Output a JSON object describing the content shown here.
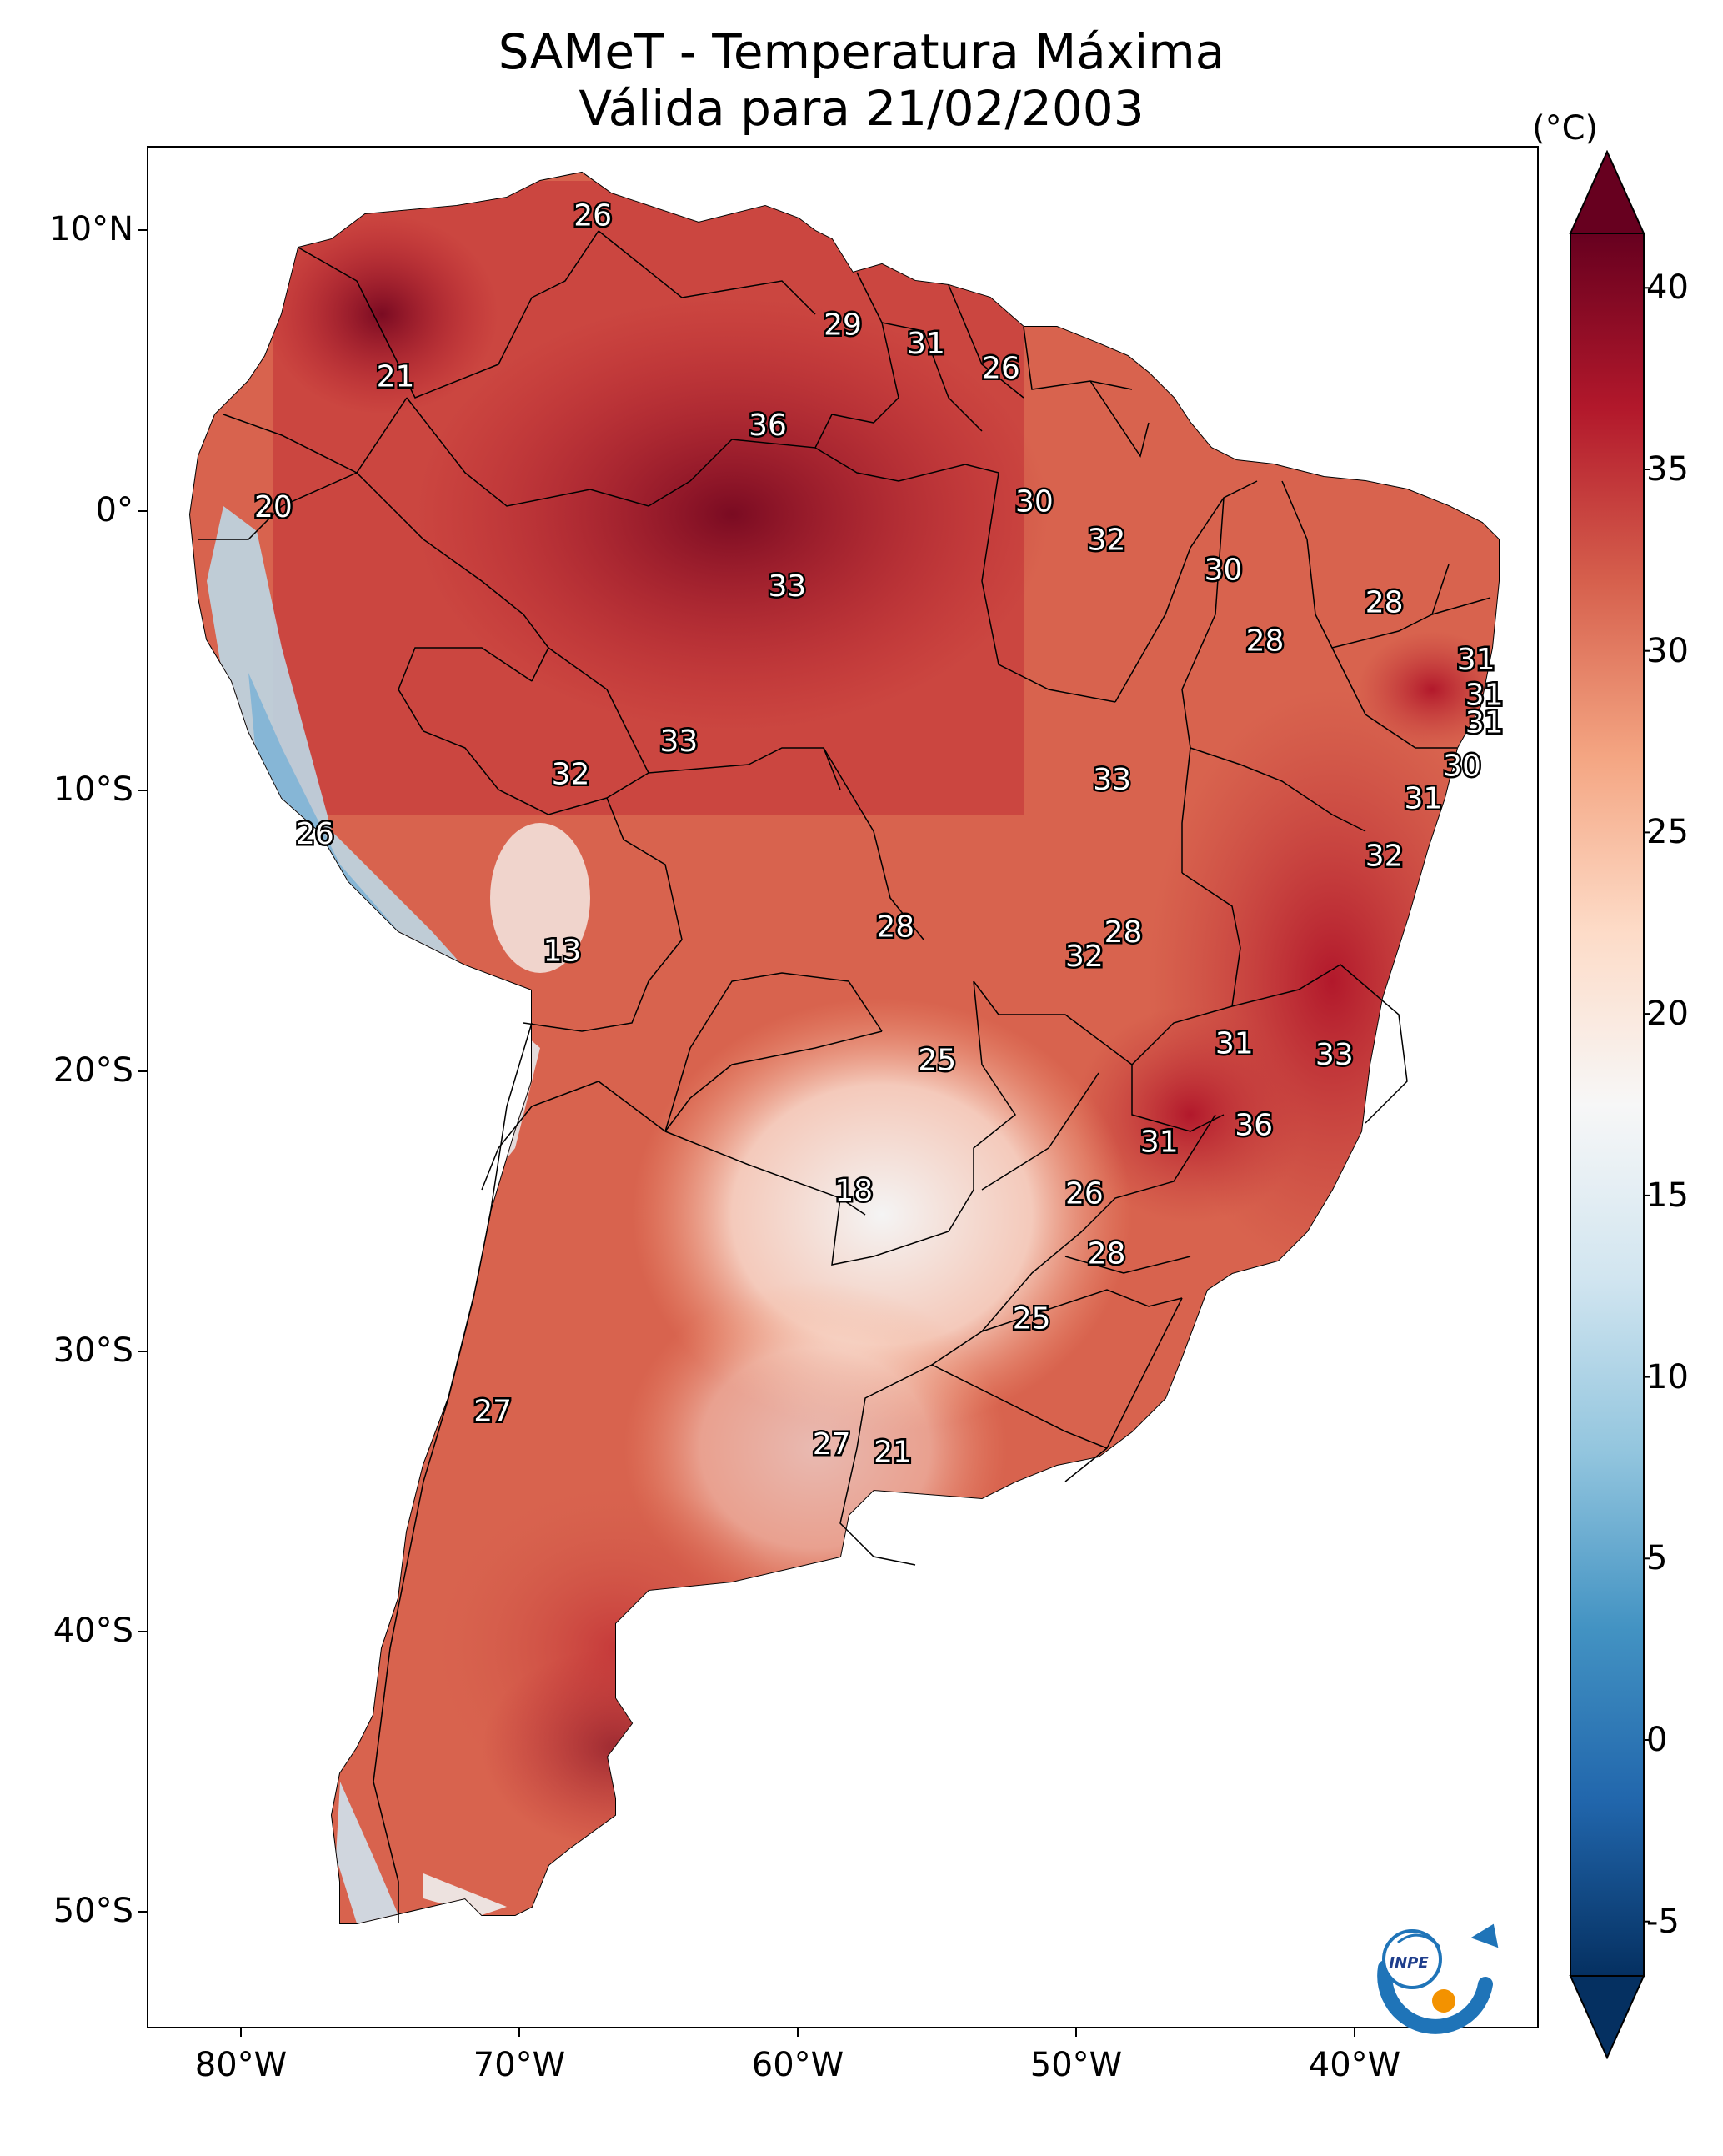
{
  "title": {
    "line1": "SAMeT - Temperatura Máxima",
    "line2": "Válida para 21/02/2003"
  },
  "axes": {
    "lat_labels": [
      "10°N",
      "0°",
      "10°S",
      "20°S",
      "30°S",
      "40°S",
      "50°S"
    ],
    "lon_labels": [
      "80°W",
      "70°W",
      "60°W",
      "50°W",
      "40°W"
    ]
  },
  "colorbar": {
    "unit": "(°C)",
    "ticks": [
      "40",
      "35",
      "30",
      "25",
      "20",
      "15",
      "10",
      "5",
      "0",
      "-5"
    ],
    "range": [
      -5,
      40
    ],
    "colors": [
      "#053061",
      "#2166ac",
      "#4393c3",
      "#92c5de",
      "#d1e5f0",
      "#f7f7f7",
      "#fddbc7",
      "#f4a582",
      "#d6604d",
      "#b2182b",
      "#67001f"
    ]
  },
  "logo": {
    "text": "INPE"
  },
  "chart_data": {
    "type": "heatmap",
    "title": "SAMeT - Temperatura Máxima / Válida para 21/02/2003",
    "variable": "Maximum temperature",
    "units": "°C",
    "lon_range": [
      -83,
      -33
    ],
    "lat_range": [
      -56,
      13
    ],
    "station_values": [
      {
        "lat": 10.5,
        "lon": -67.0,
        "value": 26
      },
      {
        "lat": 6.5,
        "lon": -58.0,
        "value": 29
      },
      {
        "lat": 5.8,
        "lon": -55.0,
        "value": 31
      },
      {
        "lat": 4.9,
        "lon": -52.3,
        "value": 26
      },
      {
        "lat": 4.6,
        "lon": -74.1,
        "value": 21
      },
      {
        "lat": 2.8,
        "lon": -60.7,
        "value": 36
      },
      {
        "lat": -0.2,
        "lon": -78.5,
        "value": 20
      },
      {
        "lat": 0.0,
        "lon": -51.1,
        "value": 30
      },
      {
        "lat": -1.4,
        "lon": -48.5,
        "value": 32
      },
      {
        "lat": -2.5,
        "lon": -44.3,
        "value": 30
      },
      {
        "lat": -3.1,
        "lon": -60.0,
        "value": 33
      },
      {
        "lat": -3.7,
        "lon": -38.5,
        "value": 28
      },
      {
        "lat": -5.1,
        "lon": -42.8,
        "value": 28
      },
      {
        "lat": -5.8,
        "lon": -35.2,
        "value": 31
      },
      {
        "lat": -7.1,
        "lon": -34.9,
        "value": 31
      },
      {
        "lat": -8.1,
        "lon": -34.9,
        "value": 31
      },
      {
        "lat": -8.8,
        "lon": -63.9,
        "value": 33
      },
      {
        "lat": -9.7,
        "lon": -35.7,
        "value": 30
      },
      {
        "lat": -10.0,
        "lon": -67.8,
        "value": 32
      },
      {
        "lat": -10.2,
        "lon": -48.3,
        "value": 33
      },
      {
        "lat": -10.9,
        "lon": -37.1,
        "value": 31
      },
      {
        "lat": -12.2,
        "lon": -77.0,
        "value": 26
      },
      {
        "lat": -13.0,
        "lon": -38.5,
        "value": 32
      },
      {
        "lat": -15.6,
        "lon": -56.1,
        "value": 28
      },
      {
        "lat": -15.8,
        "lon": -47.9,
        "value": 28
      },
      {
        "lat": -16.5,
        "lon": -68.1,
        "value": 13
      },
      {
        "lat": -16.7,
        "lon": -49.3,
        "value": 32
      },
      {
        "lat": -19.9,
        "lon": -43.9,
        "value": 31
      },
      {
        "lat": -20.3,
        "lon": -40.3,
        "value": 33
      },
      {
        "lat": -20.5,
        "lon": -54.6,
        "value": 25
      },
      {
        "lat": -22.9,
        "lon": -43.2,
        "value": 36
      },
      {
        "lat": -23.5,
        "lon": -46.6,
        "value": 31
      },
      {
        "lat": -25.3,
        "lon": -57.6,
        "value": 18
      },
      {
        "lat": -25.4,
        "lon": -49.3,
        "value": 26
      },
      {
        "lat": -27.6,
        "lon": -48.5,
        "value": 28
      },
      {
        "lat": -30.0,
        "lon": -51.2,
        "value": 25
      },
      {
        "lat": -33.4,
        "lon": -70.6,
        "value": 27
      },
      {
        "lat": -34.6,
        "lon": -58.4,
        "value": 27
      },
      {
        "lat": -34.9,
        "lon": -56.2,
        "value": 21
      }
    ]
  }
}
